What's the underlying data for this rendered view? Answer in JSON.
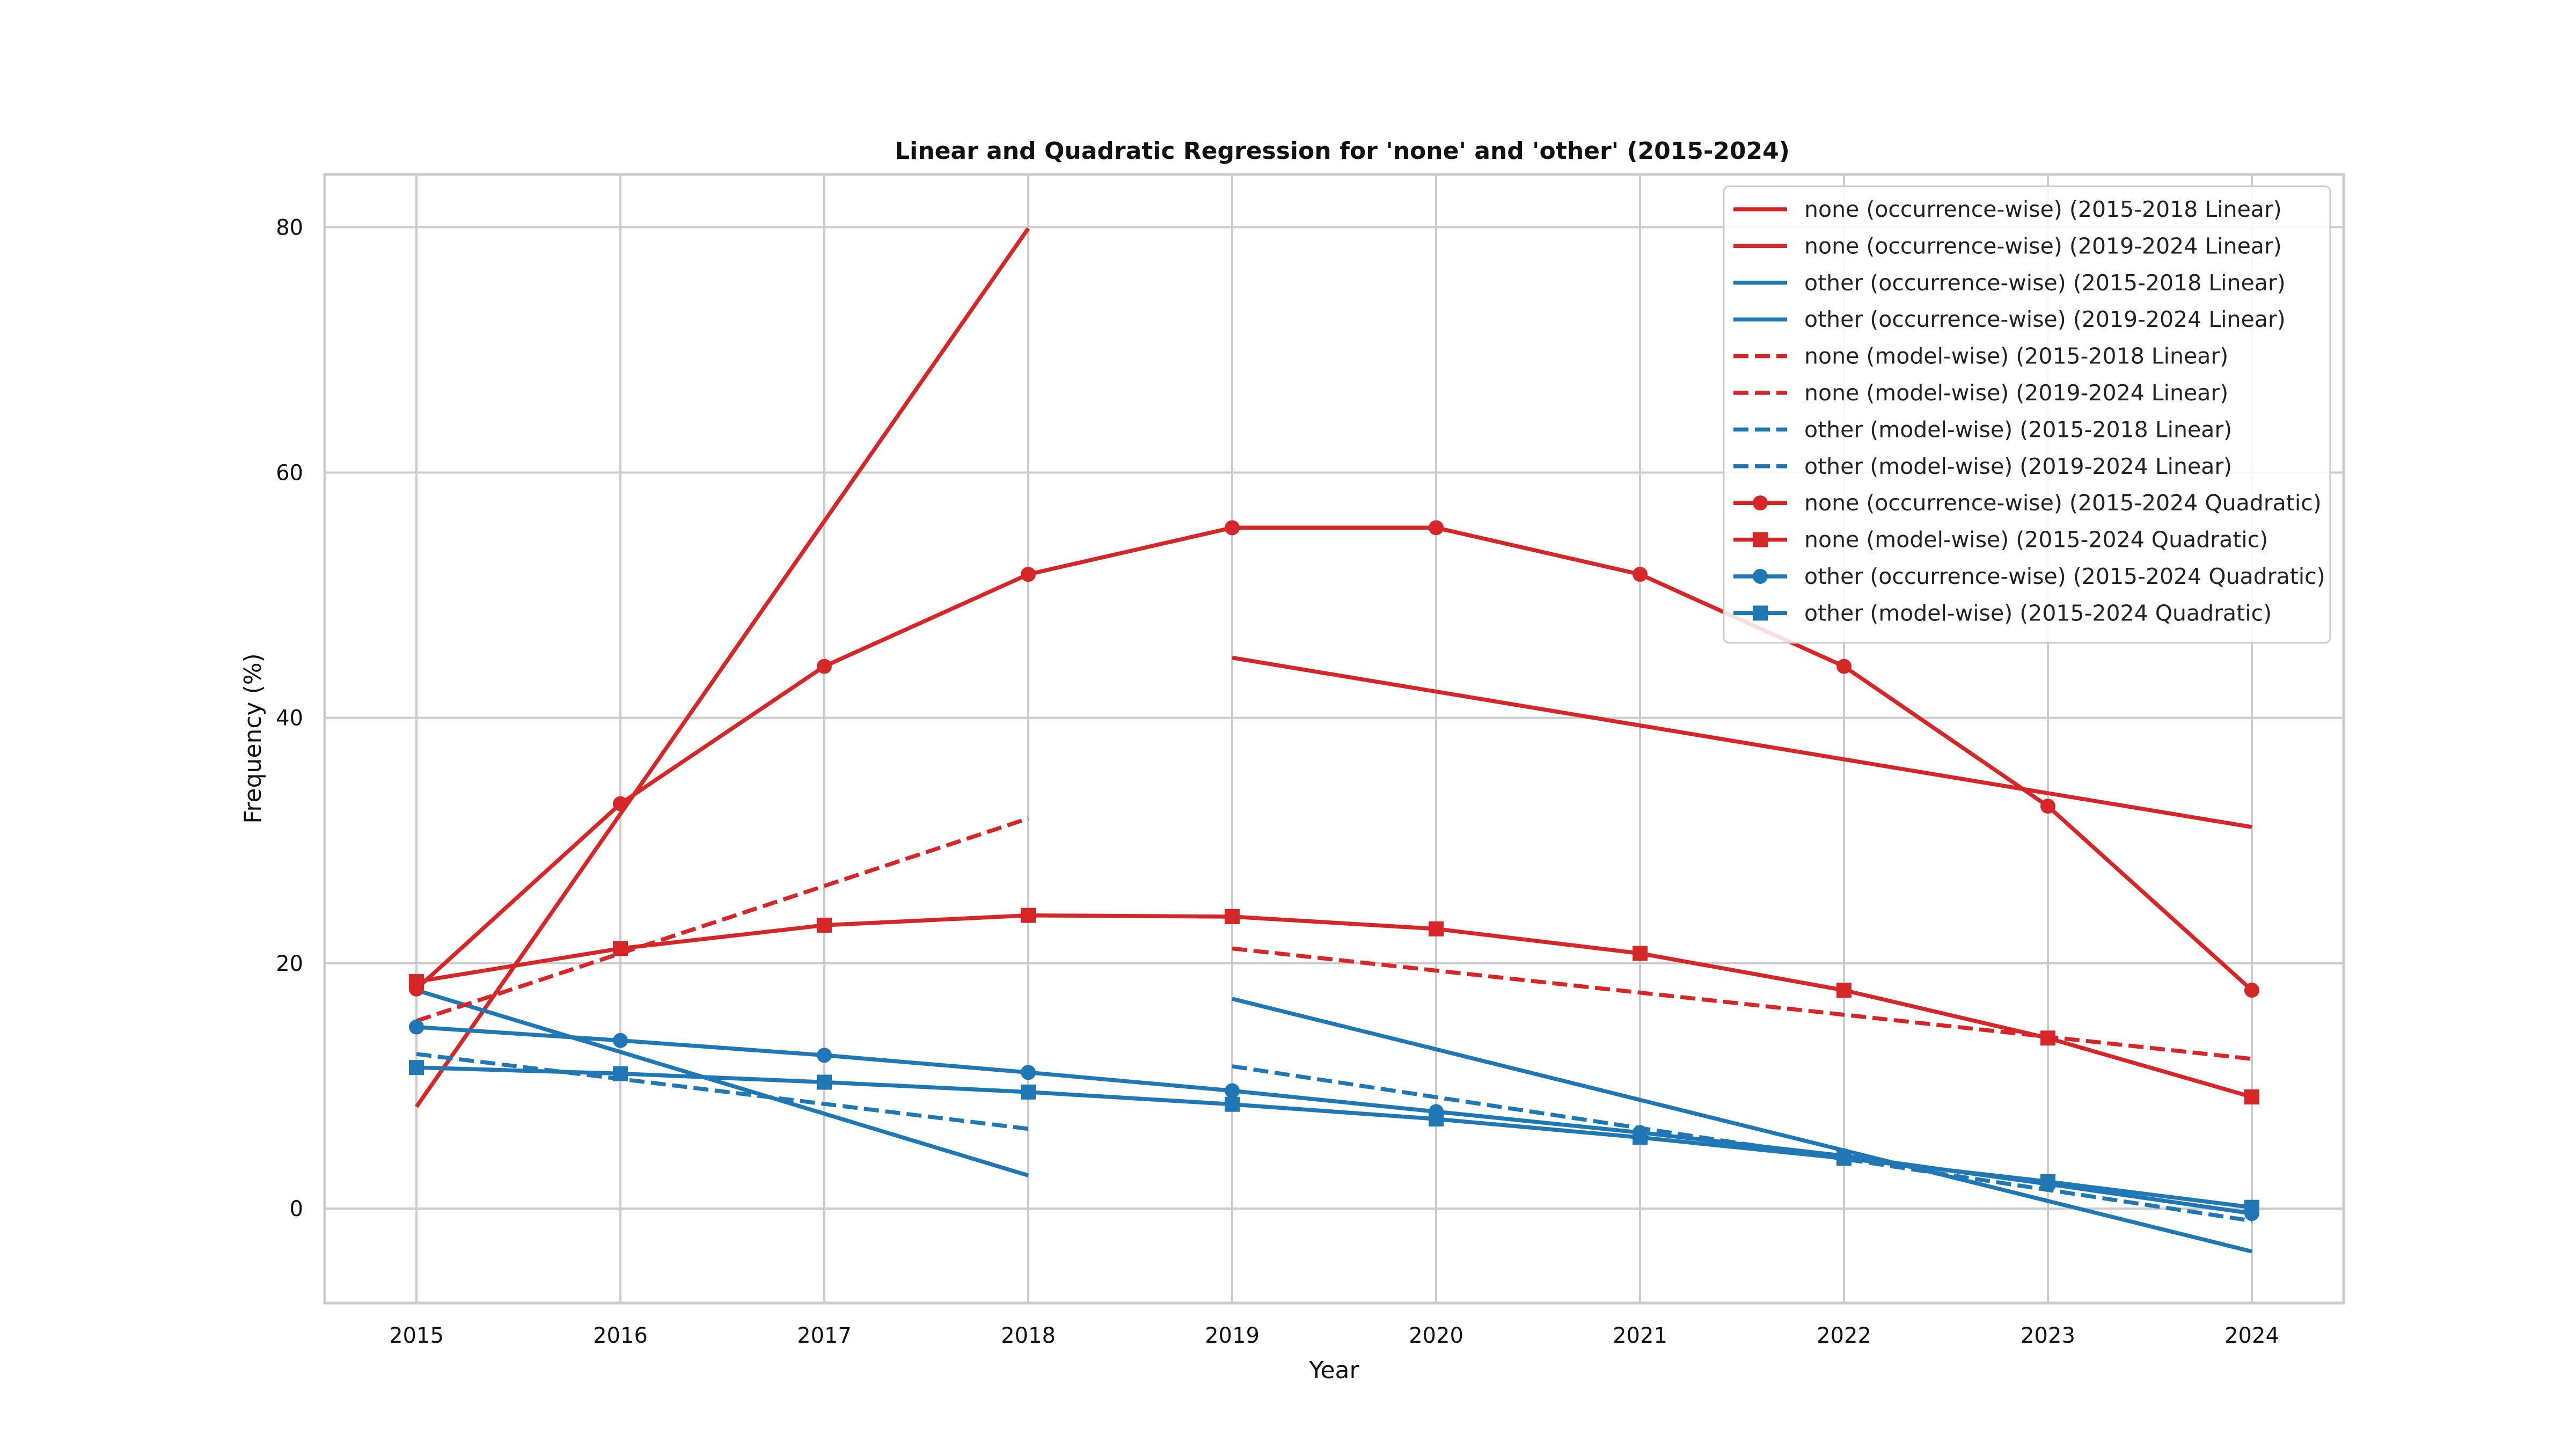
{
  "chart_data": {
    "type": "line",
    "title": "Linear and Quadratic Regression for 'none' and 'other' (2015-2024)",
    "xlabel": "Year",
    "ylabel": "Frequency (%)",
    "x_ticks": [
      2015,
      2016,
      2017,
      2018,
      2019,
      2020,
      2021,
      2022,
      2023,
      2024
    ],
    "y_ticks": [
      0,
      20,
      40,
      60,
      80
    ],
    "xlim": [
      2014.55,
      2024.45
    ],
    "ylim": [
      -7.7,
      84.3
    ],
    "grid": true,
    "legend_position": "top-right",
    "colors": {
      "none": "#d62728",
      "other": "#1f77b4"
    },
    "series": [
      {
        "name": "none (occurrence-wise) (2015-2018 Linear)",
        "color": "#d62728",
        "dash": "solid",
        "marker": "none",
        "x": [
          2015,
          2018
        ],
        "y": [
          8.3,
          79.9
        ]
      },
      {
        "name": "none (occurrence-wise) (2019-2024 Linear)",
        "color": "#d62728",
        "dash": "solid",
        "marker": "none",
        "x": [
          2019,
          2024
        ],
        "y": [
          44.9,
          31.1
        ]
      },
      {
        "name": "other (occurrence-wise) (2015-2018 Linear)",
        "color": "#1f77b4",
        "dash": "solid",
        "marker": "none",
        "x": [
          2015,
          2018
        ],
        "y": [
          17.8,
          2.7
        ]
      },
      {
        "name": "other (occurrence-wise) (2019-2024 Linear)",
        "color": "#1f77b4",
        "dash": "solid",
        "marker": "none",
        "x": [
          2019,
          2024
        ],
        "y": [
          17.1,
          -3.5
        ]
      },
      {
        "name": "none (model-wise) (2015-2018 Linear)",
        "color": "#d62728",
        "dash": "dashed",
        "marker": "none",
        "x": [
          2015,
          2018
        ],
        "y": [
          15.3,
          31.8
        ]
      },
      {
        "name": "none (model-wise) (2019-2024 Linear)",
        "color": "#d62728",
        "dash": "dashed",
        "marker": "none",
        "x": [
          2019,
          2024
        ],
        "y": [
          21.2,
          12.2
        ]
      },
      {
        "name": "other (model-wise) (2015-2018 Linear)",
        "color": "#1f77b4",
        "dash": "dashed",
        "marker": "none",
        "x": [
          2015,
          2018
        ],
        "y": [
          12.6,
          6.5
        ]
      },
      {
        "name": "other (model-wise) (2019-2024 Linear)",
        "color": "#1f77b4",
        "dash": "dashed",
        "marker": "none",
        "x": [
          2019,
          2024
        ],
        "y": [
          11.6,
          -1.0
        ]
      },
      {
        "name": "none (occurrence-wise) (2015-2024 Quadratic)",
        "color": "#d62728",
        "dash": "solid",
        "marker": "circle",
        "x": [
          2015,
          2016,
          2017,
          2018,
          2019,
          2020,
          2021,
          2022,
          2023,
          2024
        ],
        "y": [
          17.9,
          33.0,
          44.2,
          51.7,
          55.5,
          55.5,
          51.7,
          44.2,
          32.8,
          17.8
        ]
      },
      {
        "name": "none (model-wise) (2015-2024 Quadratic)",
        "color": "#d62728",
        "dash": "solid",
        "marker": "square",
        "x": [
          2015,
          2016,
          2017,
          2018,
          2019,
          2020,
          2021,
          2022,
          2023,
          2024
        ],
        "y": [
          18.5,
          21.2,
          23.1,
          23.9,
          23.8,
          22.8,
          20.8,
          17.8,
          13.9,
          9.1
        ]
      },
      {
        "name": "other (occurrence-wise) (2015-2024 Quadratic)",
        "color": "#1f77b4",
        "dash": "solid",
        "marker": "circle",
        "x": [
          2015,
          2016,
          2017,
          2018,
          2019,
          2020,
          2021,
          2022,
          2023,
          2024
        ],
        "y": [
          14.8,
          13.7,
          12.5,
          11.1,
          9.6,
          7.9,
          6.2,
          4.3,
          2.0,
          -0.4
        ]
      },
      {
        "name": "other (model-wise) (2015-2024 Quadratic)",
        "color": "#1f77b4",
        "dash": "solid",
        "marker": "square",
        "x": [
          2015,
          2016,
          2017,
          2018,
          2019,
          2020,
          2021,
          2022,
          2023,
          2024
        ],
        "y": [
          11.5,
          11.0,
          10.3,
          9.5,
          8.5,
          7.3,
          5.8,
          4.1,
          2.2,
          0.1
        ]
      }
    ]
  }
}
